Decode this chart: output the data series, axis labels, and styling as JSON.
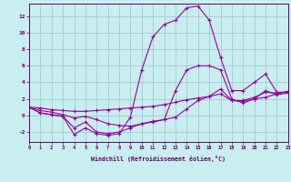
{
  "bg_color": "#c8eef0",
  "grid_color": "#a0ccd0",
  "line_color": "#990099",
  "tick_color": "#660066",
  "xlabel": "Windchill (Refroidissement éolien,°C)",
  "xlim": [
    0,
    23
  ],
  "ylim": [
    -3.2,
    13.5
  ],
  "xticks": [
    0,
    1,
    2,
    3,
    4,
    5,
    6,
    7,
    8,
    9,
    10,
    11,
    12,
    13,
    14,
    15,
    16,
    17,
    18,
    19,
    20,
    21,
    22,
    23
  ],
  "yticks": [
    -2,
    0,
    2,
    4,
    6,
    8,
    10,
    12
  ],
  "line1": [
    1.0,
    0.3,
    0.1,
    -0.1,
    -2.3,
    -1.5,
    -2.2,
    -2.4,
    -2.2,
    -0.2,
    5.5,
    9.5,
    11.0,
    11.5,
    13.0,
    13.2,
    11.5,
    7.0,
    3.0,
    3.0,
    4.0,
    5.0,
    2.8,
    2.8
  ],
  "line2": [
    1.0,
    0.3,
    0.1,
    -0.1,
    -1.5,
    -0.8,
    -2.0,
    -2.2,
    -2.0,
    -1.5,
    -1.0,
    -0.8,
    -0.5,
    3.0,
    5.5,
    6.0,
    6.0,
    5.5,
    2.0,
    1.5,
    2.0,
    3.0,
    2.5,
    2.7
  ],
  "line3": [
    1.0,
    0.6,
    0.4,
    0.1,
    -0.3,
    -0.1,
    -0.5,
    -1.0,
    -1.2,
    -1.3,
    -1.0,
    -0.7,
    -0.5,
    -0.2,
    0.8,
    1.8,
    2.3,
    3.2,
    1.8,
    1.8,
    2.2,
    2.8,
    2.7,
    2.9
  ],
  "line4": [
    1.0,
    0.9,
    0.7,
    0.6,
    0.5,
    0.5,
    0.6,
    0.7,
    0.8,
    0.9,
    1.0,
    1.1,
    1.3,
    1.6,
    1.9,
    2.1,
    2.3,
    2.6,
    1.8,
    1.7,
    2.0,
    2.2,
    2.6,
    2.9
  ]
}
